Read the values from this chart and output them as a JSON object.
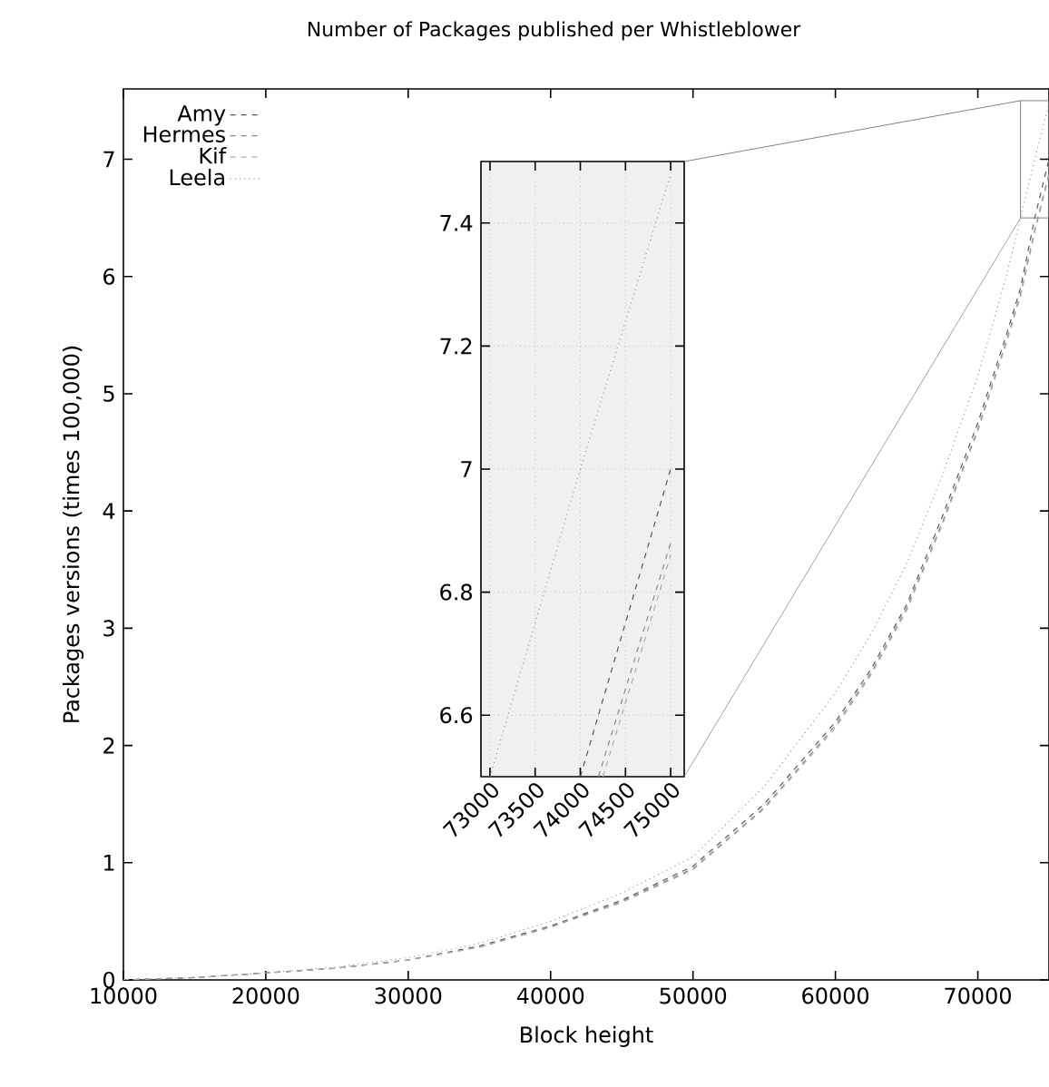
{
  "chart_data": [
    {
      "type": "line",
      "title": "Number of Packages published per Whistleblower",
      "xlabel": "Block height",
      "ylabel": "Packages versions (times 100,000)",
      "xlim": [
        10000,
        75000
      ],
      "ylim": [
        0,
        7.6
      ],
      "xticks": [
        10000,
        20000,
        30000,
        40000,
        50000,
        60000,
        70000
      ],
      "yticks": [
        0,
        1,
        2,
        3,
        4,
        5,
        6,
        7
      ],
      "legend": "top left",
      "x": [
        10000,
        15000,
        20000,
        25000,
        30000,
        35000,
        40000,
        45000,
        50000,
        55000,
        60000,
        62500,
        65000,
        67500,
        70000,
        72000,
        73000,
        74000,
        75000
      ],
      "series": [
        {
          "name": "Amy",
          "color": "#555555",
          "line_style": "dashed",
          "values": [
            0,
            0.02,
            0.06,
            0.1,
            0.17,
            0.29,
            0.46,
            0.68,
            0.97,
            1.5,
            2.2,
            2.65,
            3.2,
            3.95,
            4.75,
            5.5,
            5.9,
            6.5,
            7.0
          ]
        },
        {
          "name": "Hermes",
          "color": "#888888",
          "line_style": "dashed",
          "values": [
            0,
            0.02,
            0.06,
            0.1,
            0.17,
            0.28,
            0.45,
            0.67,
            0.95,
            1.47,
            2.17,
            2.62,
            3.17,
            3.9,
            4.7,
            5.45,
            5.85,
            6.4,
            6.88
          ]
        },
        {
          "name": "Kif",
          "color": "#aaaaaa",
          "line_style": "dashed",
          "values": [
            0,
            0.02,
            0.06,
            0.1,
            0.17,
            0.28,
            0.45,
            0.66,
            0.94,
            1.46,
            2.15,
            2.6,
            3.15,
            3.88,
            4.68,
            5.43,
            5.83,
            6.38,
            6.86
          ]
        },
        {
          "name": "Leela",
          "color": "#999999",
          "line_style": "dotted",
          "values": [
            0,
            0.02,
            0.06,
            0.11,
            0.19,
            0.31,
            0.5,
            0.74,
            1.05,
            1.65,
            2.45,
            2.95,
            3.55,
            4.3,
            5.15,
            6.0,
            6.5,
            7.0,
            7.48
          ]
        }
      ]
    },
    {
      "type": "line",
      "xlim": [
        72900,
        75150
      ],
      "ylim": [
        6.5,
        7.5
      ],
      "xticks": [
        73000,
        73500,
        74000,
        74500,
        75000
      ],
      "yticks": [
        6.6,
        6.8,
        7,
        7.2,
        7.4
      ],
      "grid": true,
      "series": [
        {
          "color": "#555555",
          "line_style": "dashed",
          "x": [
            74000,
            75000
          ],
          "values": [
            6.5,
            7.0
          ]
        },
        {
          "color": "#888888",
          "line_style": "dashed",
          "x": [
            74200,
            75000
          ],
          "values": [
            6.5,
            6.88
          ]
        },
        {
          "color": "#aaaaaa",
          "line_style": "dashed",
          "x": [
            74250,
            75000
          ],
          "values": [
            6.5,
            6.86
          ]
        },
        {
          "color": "#999999",
          "line_style": "dotted",
          "x": [
            73000,
            74000,
            75000
          ],
          "values": [
            6.5,
            7.0,
            7.48
          ]
        }
      ]
    }
  ]
}
